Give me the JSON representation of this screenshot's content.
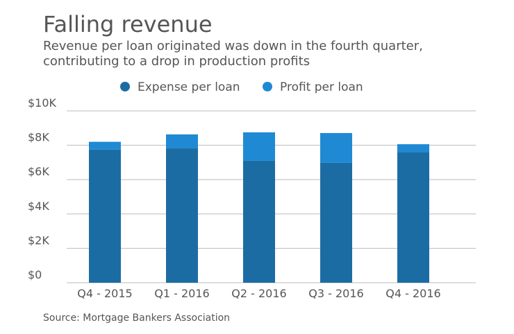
{
  "chart_data": {
    "type": "stacked_bar",
    "title": "Falling revenue",
    "subtitle": [
      "Revenue per loan originated was down in the fourth quarter,",
      "contributing to a drop in production profits"
    ],
    "source": "Source: Mortgage Bankers Association",
    "categories": [
      "Q4 - 2015",
      "Q1 - 2016",
      "Q2 - 2016",
      "Q3 - 2016",
      "Q4 - 2016"
    ],
    "series": [
      {
        "name": "Expense per loan",
        "color": "#1c6ca4",
        "values": [
          7750,
          7820,
          7100,
          6980,
          7580
        ]
      },
      {
        "name": "Profit per loan",
        "color": "#1f8ad3",
        "values": [
          450,
          810,
          1650,
          1730,
          480
        ]
      }
    ],
    "ylim": [
      0,
      10000
    ],
    "yticks": [
      {
        "value": 0,
        "label": "$0"
      },
      {
        "value": 2000,
        "label": "$2K"
      },
      {
        "value": 4000,
        "label": "$4K"
      },
      {
        "value": 6000,
        "label": "$6K"
      },
      {
        "value": 8000,
        "label": "$8K"
      },
      {
        "value": 10000,
        "label": "$10K"
      }
    ],
    "grid": true
  }
}
